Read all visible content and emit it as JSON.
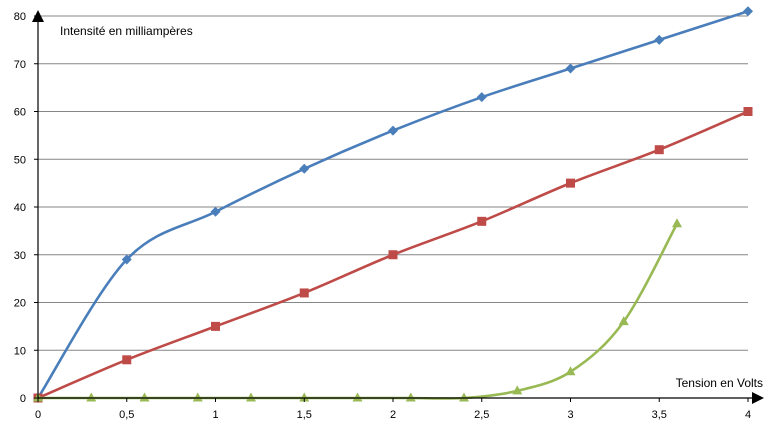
{
  "chart_data": {
    "type": "line",
    "title": "",
    "ylabel": "Intensité en milliampères",
    "xlabel": "Tension en Volts",
    "xlim": [
      0,
      4
    ],
    "ylim": [
      0,
      80
    ],
    "grid": "horizontal",
    "legend": "none",
    "x_ticks": [
      {
        "value": 0,
        "label": "0"
      },
      {
        "value": 0.5,
        "label": "0,5"
      },
      {
        "value": 1,
        "label": "1"
      },
      {
        "value": 1.5,
        "label": "1,5"
      },
      {
        "value": 2,
        "label": "2"
      },
      {
        "value": 2.5,
        "label": "2,5"
      },
      {
        "value": 3,
        "label": "3"
      },
      {
        "value": 3.5,
        "label": "3,5"
      },
      {
        "value": 4,
        "label": "4"
      }
    ],
    "y_ticks": [
      {
        "value": 0,
        "label": "0"
      },
      {
        "value": 10,
        "label": "10"
      },
      {
        "value": 20,
        "label": "20"
      },
      {
        "value": 30,
        "label": "30"
      },
      {
        "value": 40,
        "label": "40"
      },
      {
        "value": 50,
        "label": "50"
      },
      {
        "value": 60,
        "label": "60"
      },
      {
        "value": 70,
        "label": "70"
      },
      {
        "value": 80,
        "label": "80"
      }
    ],
    "series": [
      {
        "color": "#4a7ebb",
        "marker": "diamond",
        "smooth": true,
        "points": [
          [
            0,
            0
          ],
          [
            0.5,
            29
          ],
          [
            1,
            39
          ],
          [
            1.5,
            48
          ],
          [
            2,
            56
          ],
          [
            2.5,
            63
          ],
          [
            3,
            69
          ],
          [
            3.5,
            75
          ],
          [
            4,
            81
          ]
        ]
      },
      {
        "color": "#be4b48",
        "marker": "square",
        "smooth": true,
        "points": [
          [
            0,
            0
          ],
          [
            0.5,
            8
          ],
          [
            1,
            15
          ],
          [
            1.5,
            22
          ],
          [
            2,
            30
          ],
          [
            2.5,
            37
          ],
          [
            3,
            45
          ],
          [
            3.5,
            52
          ],
          [
            4,
            60
          ]
        ]
      },
      {
        "color": "#98b954",
        "marker": "triangle",
        "smooth": true,
        "points": [
          [
            0,
            0
          ],
          [
            0.3,
            0
          ],
          [
            0.6,
            0
          ],
          [
            0.9,
            0
          ],
          [
            1.2,
            0
          ],
          [
            1.5,
            0
          ],
          [
            1.8,
            0
          ],
          [
            2.1,
            0
          ],
          [
            2.4,
            0
          ],
          [
            2.7,
            1.5
          ],
          [
            3,
            5.5
          ],
          [
            3.3,
            16
          ],
          [
            3.6,
            36.5
          ]
        ]
      }
    ]
  }
}
